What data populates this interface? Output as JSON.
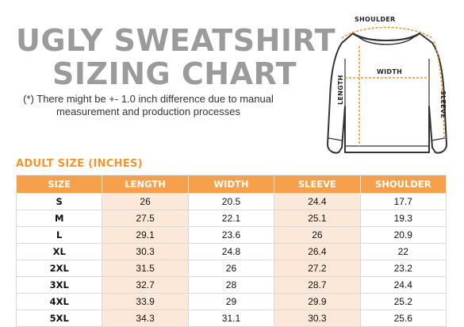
{
  "title": {
    "line1": "UGLY SWEATSHIRT",
    "line2": "SIZING CHART"
  },
  "note": "(*) There might be +- 1.0 inch difference due to manual measurement and production processes",
  "figure": {
    "shoulder_label": "SHOULDER",
    "width_label": "WIDTH",
    "length_label": "LENGTH",
    "sleeve_label": "SLEEVE",
    "accent_color": "#f2952e",
    "icon": "sweatshirt-outline"
  },
  "section_title": "ADULT SIZE (INCHES)",
  "table": {
    "header_color": "#f7a04b",
    "shade_color": "#fce8d8",
    "headers": [
      "SIZE",
      "LENGTH",
      "WIDTH",
      "SLEEVE",
      "SHOULDER"
    ],
    "rows": [
      [
        "S",
        "26",
        "20.5",
        "24.4",
        "17.7"
      ],
      [
        "M",
        "27.5",
        "22.1",
        "25.1",
        "19.3"
      ],
      [
        "L",
        "29.1",
        "23.6",
        "26",
        "20.9"
      ],
      [
        "XL",
        "30.3",
        "24.8",
        "26.4",
        "22"
      ],
      [
        "2XL",
        "31.5",
        "26",
        "27.2",
        "23.2"
      ],
      [
        "3XL",
        "32.7",
        "28",
        "28.7",
        "24.4"
      ],
      [
        "4XL",
        "33.9",
        "29",
        "29.9",
        "25.2"
      ],
      [
        "5XL",
        "34.3",
        "31.1",
        "30.3",
        "25.6"
      ]
    ]
  }
}
